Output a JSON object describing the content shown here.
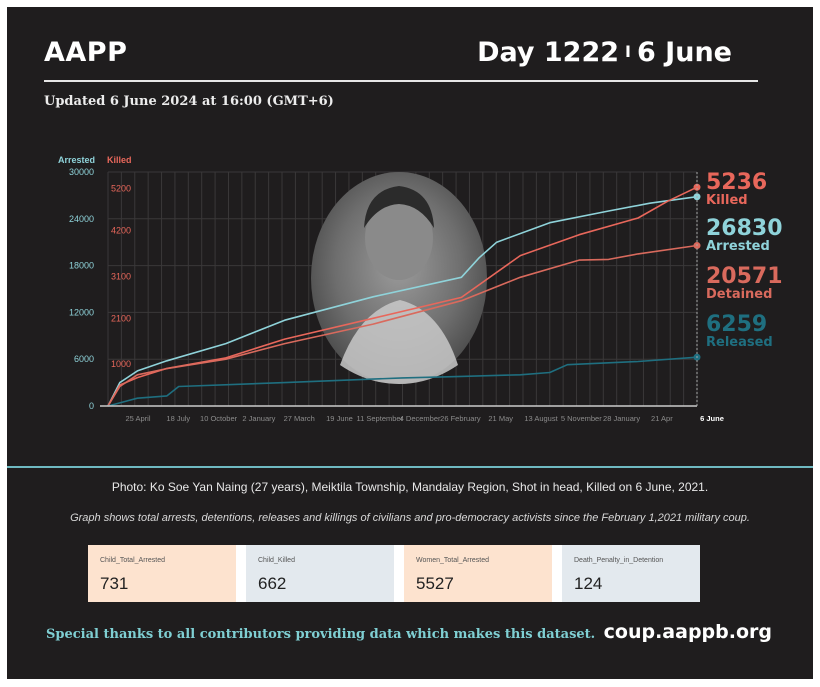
{
  "header": {
    "brand": "AAPP",
    "day": "Day 1222",
    "separator": "I",
    "date": "6 June",
    "updated": "Updated 6 June 2024 at 16:00 (GMT+6)"
  },
  "colors": {
    "background": "#1f1d1e",
    "arrested": "#8fd3da",
    "killed": "#e8675b",
    "detained": "#d96a5d",
    "released": "#1f6f80",
    "divider": "#6fb9c1",
    "card_peach": "#fde3cf",
    "card_blue": "#e3e9ee"
  },
  "chart_data": {
    "type": "line",
    "x_tick_labels": [
      "25 April",
      "18 July",
      "10 October",
      "2 January",
      "27 March",
      "19 June",
      "11 September",
      "4 December",
      "26 February",
      "21 May",
      "13 August",
      "5 November",
      "28 January",
      "21 Apr",
      "6 June"
    ],
    "left_axis": {
      "label": "Arrested",
      "ticks": [
        "30000",
        "24000",
        "18000",
        "12000",
        "6000",
        "0"
      ],
      "range": [
        0,
        30000
      ]
    },
    "right_axis": {
      "label": "Killed",
      "ticks": [
        "5200",
        "4200",
        "3100",
        "2100",
        "1000"
      ],
      "range": [
        0,
        5600
      ]
    },
    "series": [
      {
        "name": "Arrested",
        "axis": "left",
        "end_label": "26830",
        "end_value": 26830,
        "x": [
          0,
          0.02,
          0.05,
          0.1,
          0.2,
          0.3,
          0.45,
          0.6,
          0.63,
          0.66,
          0.75,
          0.85,
          0.92,
          1.0
        ],
        "values": [
          0,
          3000,
          4500,
          5800,
          8000,
          11000,
          14000,
          16500,
          19000,
          21000,
          23500,
          25000,
          26000,
          26830
        ]
      },
      {
        "name": "Killed",
        "axis": "right",
        "end_label": "5236",
        "end_value": 5236,
        "x": [
          0,
          0.02,
          0.05,
          0.1,
          0.2,
          0.3,
          0.45,
          0.6,
          0.7,
          0.8,
          0.9,
          0.95,
          1.0
        ],
        "values": [
          0,
          500,
          680,
          900,
          1150,
          1600,
          2100,
          2600,
          3600,
          4100,
          4500,
          4900,
          5236
        ]
      },
      {
        "name": "Detained",
        "axis": "left",
        "end_label": "20571",
        "end_value": 20571,
        "x": [
          0,
          0.02,
          0.05,
          0.1,
          0.2,
          0.3,
          0.45,
          0.6,
          0.7,
          0.8,
          0.85,
          0.9,
          1.0
        ],
        "values": [
          0,
          2500,
          4000,
          4800,
          6000,
          8000,
          10500,
          13500,
          16500,
          18700,
          18800,
          19500,
          20571
        ]
      },
      {
        "name": "Released",
        "axis": "left",
        "end_label": "6259",
        "end_value": 6259,
        "x": [
          0,
          0.02,
          0.05,
          0.1,
          0.12,
          0.3,
          0.5,
          0.6,
          0.7,
          0.75,
          0.78,
          0.9,
          1.0
        ],
        "values": [
          0,
          400,
          1000,
          1300,
          2500,
          3000,
          3600,
          3800,
          4000,
          4300,
          5300,
          5700,
          6259
        ]
      }
    ],
    "end_labels": [
      "Killed",
      "Arrested",
      "Detained",
      "Released"
    ]
  },
  "caption": "Photo: Ko Soe Yan Naing (27 years), Meiktila Township, Mandalay Region, Shot in head, Killed on 6 June, 2021.",
  "note": "Graph shows total arrests, detentions, releases and killings of civilians and pro-democracy activists since the February 1,2021 military coup.",
  "stats": [
    {
      "label": "Child_Total_Arrested",
      "value": "731"
    },
    {
      "label": "Child_Killed",
      "value": "662"
    },
    {
      "label": "Women_Total_Arrested",
      "value": "5527"
    },
    {
      "label": "Death_Penalty_in_Detention",
      "value": "124"
    }
  ],
  "footer": {
    "thanks": "Special thanks to all contributors providing data which makes this dataset.",
    "site": "coup.aappb.org"
  }
}
